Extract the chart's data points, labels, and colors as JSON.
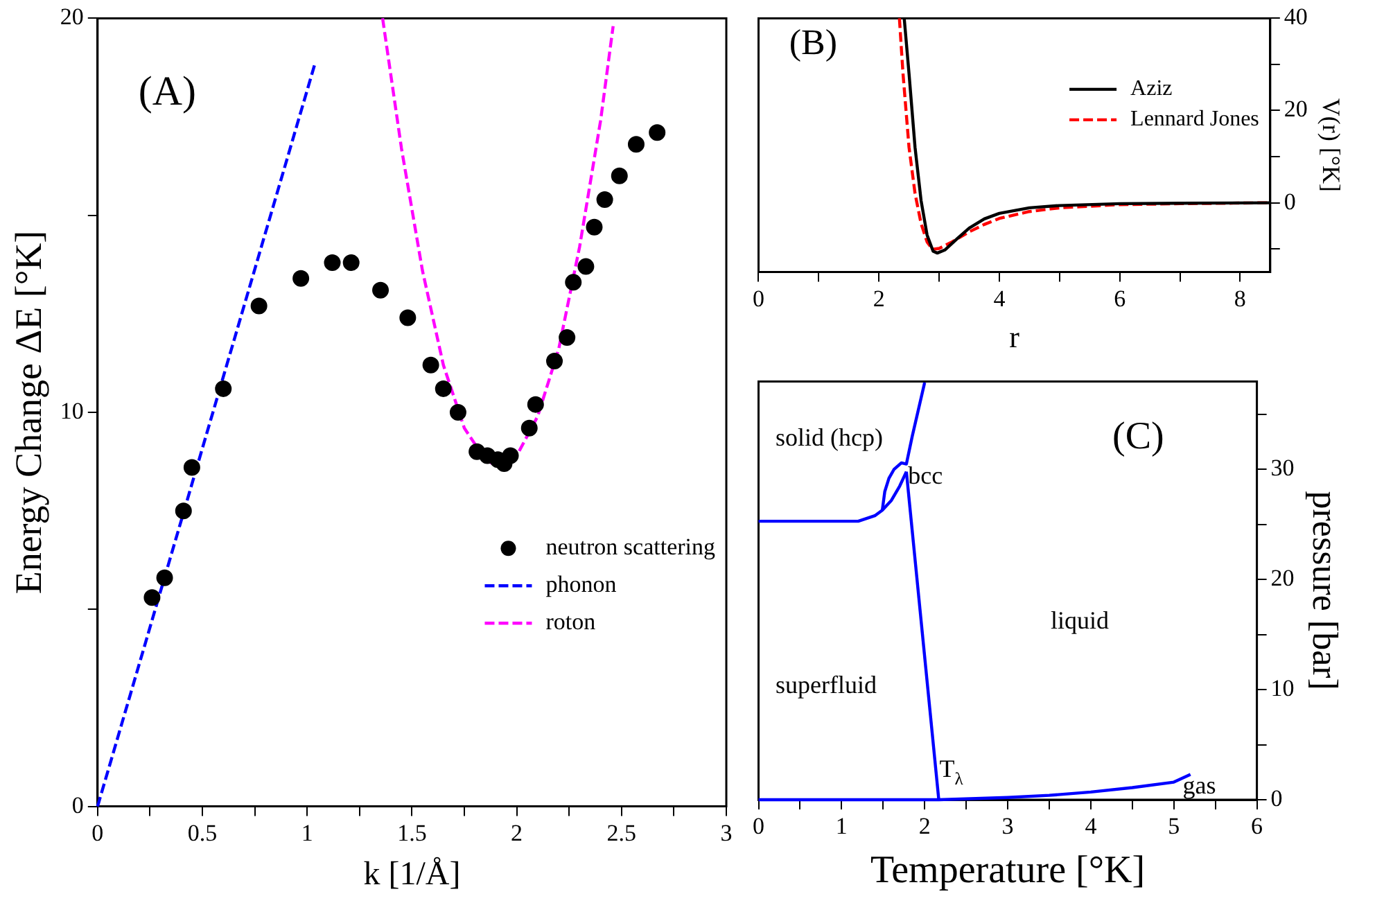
{
  "chart_data": [
    {
      "type": "scatter",
      "xlabel": "k [1/Å]",
      "ylabel": "Energy Change ΔE [°K]",
      "annotations": [
        "(A)"
      ],
      "xlim": [
        0,
        3
      ],
      "xticks": [
        0,
        {
          "value": 0.25,
          "label": null
        },
        0.5,
        {
          "value": 0.75,
          "label": null
        },
        1,
        {
          "value": 1.25,
          "label": null
        },
        1.5,
        {
          "value": 1.75,
          "label": null
        },
        2,
        {
          "value": 2.25,
          "label": null
        },
        2.5,
        {
          "value": 2.75,
          "label": null
        },
        3
      ],
      "ylim": [
        0,
        20
      ],
      "yticks": [
        0,
        {
          "value": 5,
          "label": null
        },
        10,
        {
          "value": 15,
          "label": null
        },
        20
      ],
      "legend": "right",
      "series": [
        {
          "name": "neutron scattering",
          "type": "scatter",
          "marker": "circle",
          "color": "#000000",
          "x": [
            0.26,
            0.32,
            0.41,
            0.45,
            0.6,
            0.77,
            0.97,
            1.12,
            1.21,
            1.35,
            1.48,
            1.59,
            1.65,
            1.72,
            1.81,
            1.86,
            1.91,
            1.94,
            1.97,
            2.06,
            2.09,
            2.18,
            2.24,
            2.27,
            2.33,
            2.37,
            2.42,
            2.49,
            2.57,
            2.67
          ],
          "values": [
            5.3,
            5.8,
            7.5,
            8.6,
            10.6,
            12.7,
            13.4,
            13.8,
            13.8,
            13.1,
            12.4,
            11.2,
            10.6,
            10.0,
            9.0,
            8.9,
            8.8,
            8.7,
            8.9,
            9.6,
            10.2,
            11.3,
            11.9,
            13.3,
            13.7,
            14.7,
            15.4,
            16.0,
            16.8,
            17.1
          ]
        },
        {
          "name": "phonon",
          "type": "line",
          "line_style": "dashed",
          "color": "#0000ff",
          "x": [
            0,
            1.04
          ],
          "values": [
            0,
            18.9
          ]
        },
        {
          "name": "roton",
          "type": "line",
          "line_style": "dashed",
          "color": "#ff00ff",
          "x": [
            1.36,
            1.45,
            1.55,
            1.65,
            1.75,
            1.85,
            1.92,
            2.0,
            2.1,
            2.2,
            2.3,
            2.4,
            2.46
          ],
          "values": [
            20.0,
            16.7,
            13.6,
            11.2,
            9.6,
            8.8,
            8.6,
            8.9,
            9.9,
            11.6,
            14.2,
            17.4,
            19.8
          ]
        }
      ]
    },
    {
      "type": "line",
      "xlabel": "r",
      "ylabel": "V(r) [°K]",
      "annotations": [
        "(B)"
      ],
      "xlim": [
        0,
        8.5
      ],
      "xticks": [
        0,
        {
          "value": 1,
          "label": null
        },
        2,
        {
          "value": 3,
          "label": null
        },
        4,
        {
          "value": 5,
          "label": null
        },
        6,
        {
          "value": 7,
          "label": null
        },
        8
      ],
      "ylim": [
        -15,
        40
      ],
      "yticks": [
        {
          "value": -10,
          "label": null
        },
        0,
        {
          "value": 10,
          "label": null
        },
        20,
        {
          "value": 30,
          "label": null
        },
        40
      ],
      "legend": "top right",
      "series": [
        {
          "name": "Aziz",
          "line_style": "solid",
          "color": "#000000",
          "x": [
            2.42,
            2.5,
            2.6,
            2.7,
            2.8,
            2.9,
            2.97,
            3.1,
            3.3,
            3.5,
            3.75,
            4,
            4.5,
            5,
            6,
            7,
            8.5
          ],
          "values": [
            40,
            28,
            12,
            0.5,
            -7,
            -10.5,
            -10.9,
            -10.2,
            -7.8,
            -5.5,
            -3.5,
            -2.3,
            -1.1,
            -0.6,
            -0.2,
            -0.1,
            0
          ]
        },
        {
          "name": "Lennard Jones",
          "line_style": "dashed",
          "color": "#ff0000",
          "x": [
            2.34,
            2.4,
            2.5,
            2.6,
            2.7,
            2.8,
            2.89,
            3.0,
            3.2,
            3.5,
            3.75,
            4,
            4.5,
            5,
            6,
            7,
            8.5
          ],
          "values": [
            40,
            28,
            12,
            2,
            -4.5,
            -8.5,
            -10.1,
            -9.9,
            -8.6,
            -6.3,
            -4.7,
            -3.4,
            -1.9,
            -1.1,
            -0.4,
            -0.2,
            0
          ]
        }
      ]
    },
    {
      "type": "line",
      "xlabel": "Temperature [°K]",
      "ylabel": "pressure [bar]",
      "annotations": [
        "solid (hcp)",
        "bcc",
        "liquid",
        "superfluid",
        "T$_{λ}$",
        "gas",
        "(C)"
      ],
      "xlim": [
        0,
        6
      ],
      "xticks": [
        0,
        {
          "value": 0.5,
          "label": null
        },
        1,
        {
          "value": 1.5,
          "label": null
        },
        2,
        {
          "value": 2.5,
          "label": null
        },
        3,
        {
          "value": 3.5,
          "label": null
        },
        4,
        {
          "value": 4.5,
          "label": null
        },
        5,
        {
          "value": 5.5,
          "label": null
        },
        6
      ],
      "ylim": [
        0,
        38
      ],
      "yticks": [
        0,
        {
          "value": 5,
          "label": null
        },
        10,
        {
          "value": 15,
          "label": null
        },
        20,
        {
          "value": 25,
          "label": null
        },
        30,
        {
          "value": 35,
          "label": null
        }
      ],
      "series": [
        {
          "color": "#0000ff",
          "x": [
            0,
            1.2,
            1.4,
            1.49,
            1.6,
            1.7,
            1.78
          ],
          "values": [
            25.3,
            25.3,
            25.8,
            26.3,
            27.2,
            28.5,
            29.8
          ]
        },
        {
          "color": "#0000ff",
          "x": [
            1.49,
            1.52,
            1.57,
            1.63,
            1.72,
            1.78,
            1.85,
            2.0
          ],
          "values": [
            26.3,
            28.0,
            29.2,
            30.0,
            30.6,
            30.5,
            33.0,
            37.9
          ]
        },
        {
          "color": "#0000ff",
          "x": [
            1.78,
            2.17
          ],
          "values": [
            29.8,
            0
          ]
        },
        {
          "color": "#0000ff",
          "x": [
            0,
            1.0,
            2.17,
            3.0,
            3.5,
            4.0,
            4.5,
            5.0,
            5.2
          ],
          "values": [
            0,
            0,
            0,
            0.2,
            0.4,
            0.7,
            1.1,
            1.6,
            2.3
          ]
        }
      ]
    }
  ]
}
